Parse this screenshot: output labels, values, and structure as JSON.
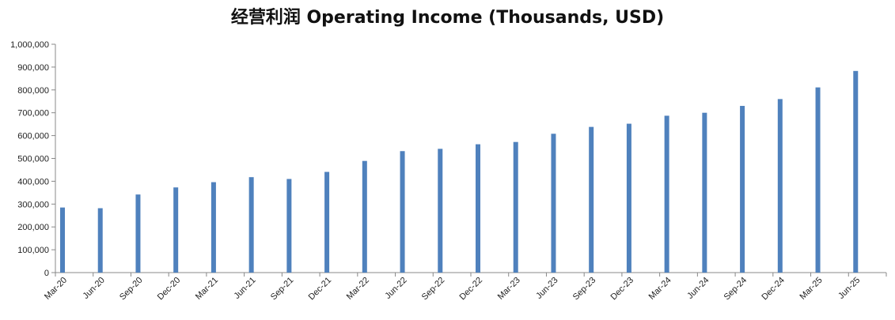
{
  "chart_data": {
    "type": "bar",
    "title": "经营利润 Operating Income (Thousands, USD)",
    "xlabel": "",
    "ylabel": "",
    "ylim": [
      0,
      1000000
    ],
    "yticks": [
      0,
      100000,
      200000,
      300000,
      400000,
      500000,
      600000,
      700000,
      800000,
      900000,
      1000000
    ],
    "ytick_labels": [
      "0",
      "100,000",
      "200,000",
      "300,000",
      "400,000",
      "500,000",
      "600,000",
      "700,000",
      "800,000",
      "900,000",
      "1,000,000"
    ],
    "grid": false,
    "legend": "none",
    "bar_color": "#4f81bd",
    "categories": [
      "Mar-20",
      "Jun-20",
      "Sep-20",
      "Dec-20",
      "Mar-21",
      "Jun-21",
      "Sep-21",
      "Dec-21",
      "Mar-22",
      "Jun-22",
      "Sep-22",
      "Dec-22",
      "Mar-23",
      "Jun-23",
      "Sep-23",
      "Dec-23",
      "Mar-24",
      "Jun-24",
      "Sep-24",
      "Dec-24",
      "Mar-25",
      "Jun-25"
    ],
    "values": [
      285000,
      282000,
      342000,
      373000,
      396000,
      418000,
      410000,
      441000,
      489000,
      532000,
      542000,
      562000,
      572000,
      608000,
      638000,
      652000,
      687000,
      700000,
      730000,
      760000,
      811000,
      883000
    ]
  }
}
